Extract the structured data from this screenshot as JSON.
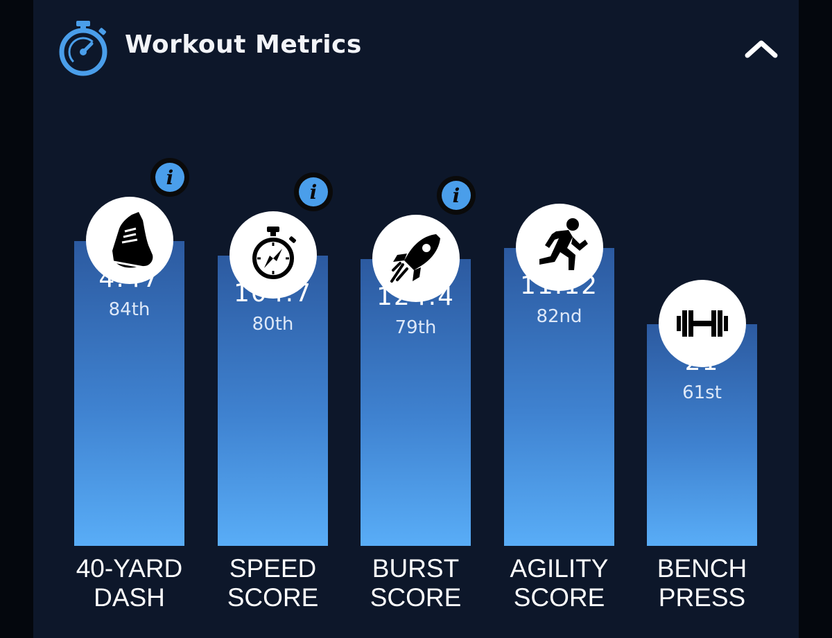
{
  "header": {
    "title": "Workout Metrics",
    "icon": "stopwatch-gauge-icon",
    "collapse_icon": "chevron-up-icon"
  },
  "colors": {
    "background": "#0d172a",
    "accent": "#4a9eea",
    "bar_top": "#2c5aa0",
    "bar_bottom": "#59adf7"
  },
  "chart_data": {
    "type": "bar",
    "categories": [
      [
        "40-YARD",
        "DASH"
      ],
      [
        "SPEED",
        "SCORE"
      ],
      [
        "BURST",
        "SCORE"
      ],
      [
        "AGILITY",
        "SCORE"
      ],
      [
        "BENCH",
        "PRESS"
      ]
    ],
    "metrics": [
      {
        "value": "4.47",
        "percentile": "84th",
        "percentile_value": 84,
        "icon": "shoe-icon",
        "has_info": true
      },
      {
        "value": "104.7",
        "percentile": "80th",
        "percentile_value": 80,
        "icon": "stopwatch-icon",
        "has_info": true
      },
      {
        "value": "124.4",
        "percentile": "79th",
        "percentile_value": 79,
        "icon": "rocket-icon",
        "has_info": true
      },
      {
        "value": "11.12",
        "percentile": "82nd",
        "percentile_value": 82,
        "icon": "runner-icon",
        "has_info": false
      },
      {
        "value": "21",
        "percentile": "61st",
        "percentile_value": 61,
        "icon": "dumbbell-icon",
        "has_info": false
      }
    ],
    "ylim": [
      0,
      100
    ]
  }
}
